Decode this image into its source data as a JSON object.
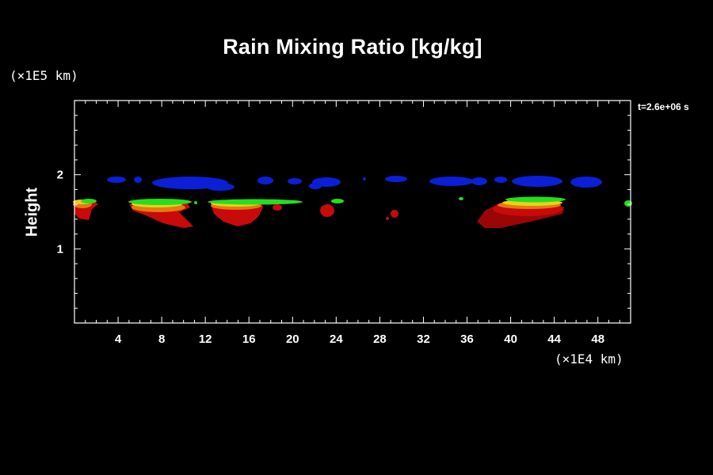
{
  "chart_data": {
    "type": "heatmap",
    "title": "Rain Mixing Ratio [kg/kg]",
    "ylabel": "Height",
    "y_unit": "(×1E5 km)",
    "x_unit": "(×1E4 km)",
    "time_label": "t=2.6e+06 s",
    "xlim": [
      0,
      51
    ],
    "ylim": [
      0,
      3
    ],
    "x_ticks": [
      4,
      8,
      12,
      16,
      20,
      24,
      28,
      32,
      36,
      40,
      44,
      48
    ],
    "y_ticks": [
      1,
      2
    ],
    "colors": {
      "blue": "#0a1fd6",
      "green": "#22e01e",
      "yellow": "#e8d21a",
      "orange": "#e57a12",
      "red": "#c80a0a",
      "dark_red": "#9a0606"
    }
  }
}
